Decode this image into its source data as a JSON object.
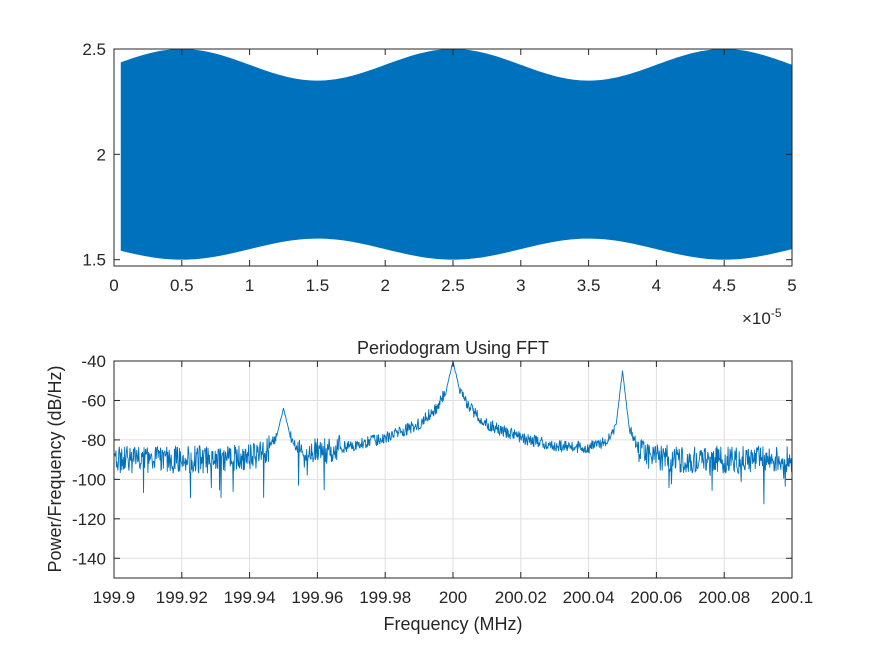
{
  "chart_data": [
    {
      "type": "area",
      "title": "",
      "xlabel": "",
      "ylabel": "",
      "x_exponent_label": "×10",
      "x_exponent_power": "-5",
      "xlim": [
        0,
        5e-05
      ],
      "ylim": [
        1.47,
        2.5
      ],
      "xticks": [
        0,
        0.5,
        1,
        1.5,
        2,
        2.5,
        3,
        3.5,
        4,
        4.5,
        5
      ],
      "xtick_labels": [
        "0",
        "0.5",
        "1",
        "1.5",
        "2",
        "2.5",
        "3",
        "3.5",
        "4",
        "4.5",
        "5"
      ],
      "yticks": [
        1.5,
        2,
        2.5
      ],
      "ytick_labels": [
        "1.5",
        "2",
        "2.5"
      ],
      "grid": false,
      "color": "#0072BD",
      "envelope": {
        "x_start": 5e-07,
        "x_end": 5e-05,
        "x_peaks": [
          5e-06,
          2.5e-05,
          4.5e-05
        ],
        "x_troughs": [
          1.5e-05,
          3.5e-05
        ],
        "upper_max": 2.5,
        "upper_min": 2.35,
        "lower_min": 1.5,
        "lower_max": 1.6
      }
    },
    {
      "type": "line",
      "title": "Periodogram Using FFT",
      "xlabel": "Frequency (MHz)",
      "ylabel": "Power/Frequency (dB/Hz)",
      "xlim": [
        199.9,
        200.1
      ],
      "ylim": [
        -150,
        -40
      ],
      "xticks": [
        199.9,
        199.92,
        199.94,
        199.96,
        199.98,
        200,
        200.02,
        200.04,
        200.06,
        200.08,
        200.1
      ],
      "xtick_labels": [
        "199.9",
        "199.92",
        "199.94",
        "199.96",
        "199.98",
        "200",
        "200.02",
        "200.04",
        "200.06",
        "200.08",
        "200.1"
      ],
      "yticks": [
        -140,
        -120,
        -100,
        -80,
        -60,
        -40
      ],
      "ytick_labels": [
        "-140",
        "-120",
        "-100",
        "-80",
        "-60",
        "-40"
      ],
      "grid": true,
      "color": "#0072BD",
      "series": [
        {
          "x": [
            199.9,
            199.91,
            199.92,
            199.93,
            199.94,
            199.945,
            199.948,
            199.95,
            199.952,
            199.955,
            199.96,
            199.97,
            199.98,
            199.99,
            199.995,
            199.998,
            200,
            200.002,
            200.005,
            200.01,
            200.02,
            200.03,
            200.04,
            200.045,
            200.048,
            200.05,
            200.052,
            200.055,
            200.06,
            200.07,
            200.08,
            200.09,
            200.1
          ],
          "y": [
            -90,
            -90,
            -90,
            -90,
            -89,
            -86,
            -78,
            -64,
            -78,
            -87,
            -86,
            -83,
            -79,
            -72,
            -64,
            -55,
            -40,
            -55,
            -64,
            -72,
            -79,
            -83,
            -84,
            -81,
            -74,
            -45,
            -74,
            -86,
            -89,
            -90,
            -90,
            -90,
            -90
          ]
        }
      ]
    }
  ]
}
